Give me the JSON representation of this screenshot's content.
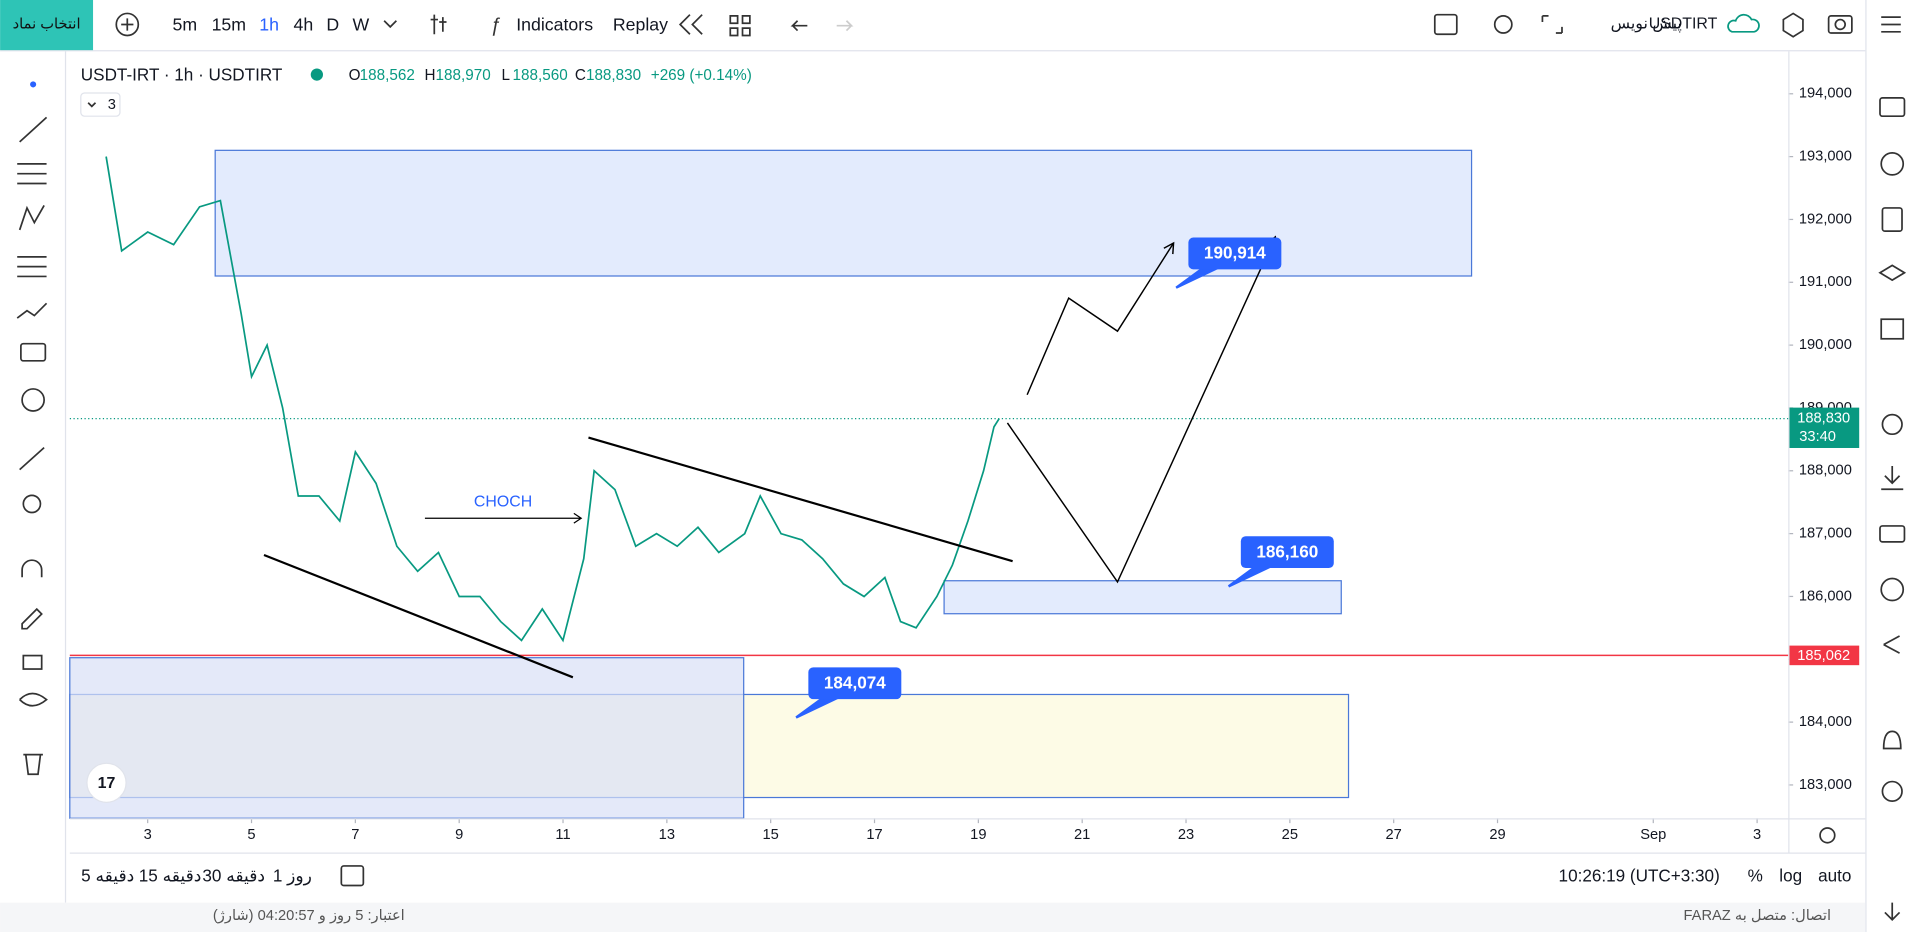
{
  "top_bar": {
    "symbol_search": "انتخاب نماد",
    "intervals": [
      "5m",
      "15m",
      "1h",
      "4h",
      "D",
      "W"
    ],
    "indicators": "Indicators",
    "replay": "Replay",
    "draft": "پیش نویس",
    "symbol": "USDTIRT"
  },
  "legend": {
    "title": "USDT-IRT · 1h · USDTIRT",
    "ohlc": [
      {
        "key": "O",
        "value": "188,562"
      },
      {
        "key": "H",
        "value": "188,970"
      },
      {
        "key": "L",
        "value": "188,560"
      },
      {
        "key": "C",
        "value": "188,830"
      }
    ],
    "change": "+269 (+0.14%)",
    "indicator_count": "3"
  },
  "chart_data": {
    "type": "line",
    "x": [
      2.2,
      2.5,
      3.0,
      3.5,
      4.0,
      4.4,
      4.8,
      5.0,
      5.3,
      5.6,
      5.9,
      6.3,
      6.7,
      7.0,
      7.4,
      7.8,
      8.2,
      8.6,
      9.0,
      9.4,
      9.8,
      10.2,
      10.6,
      11.0,
      11.4,
      11.6,
      12.0,
      12.4,
      12.8,
      13.2,
      13.6,
      14.0,
      14.5,
      14.8,
      15.2,
      15.6,
      16.0,
      16.4,
      16.8,
      17.2,
      17.5,
      17.8,
      18.2,
      18.5,
      18.8,
      19.1,
      19.3,
      19.4
    ],
    "values": [
      193000,
      191500,
      191800,
      191600,
      192200,
      192300,
      190500,
      189500,
      190000,
      189000,
      187600,
      187600,
      187200,
      188300,
      187800,
      186800,
      186400,
      186700,
      186000,
      186000,
      185600,
      185300,
      185800,
      185300,
      186600,
      188000,
      187700,
      186800,
      187000,
      186800,
      187100,
      186700,
      187000,
      187600,
      187000,
      186900,
      186600,
      186200,
      186000,
      186300,
      185600,
      185500,
      186000,
      186500,
      187200,
      188000,
      188700,
      188830
    ],
    "color": "#089981",
    "xlim": [
      1.5,
      34.6
    ],
    "xticks": [
      3,
      5,
      7,
      9,
      11,
      13,
      15,
      17,
      19,
      21,
      23,
      25,
      27,
      29,
      {
        "value": 32,
        "label": "Sep"
      },
      {
        "value": 34,
        "label": "3"
      }
    ],
    "ylim": [
      182470,
      194675
    ],
    "yticks": [
      {
        "value": 183000,
        "label": "183,000"
      },
      {
        "value": 184000,
        "label": "184,000"
      },
      {
        "value": 185000,
        "label": "185,000"
      },
      {
        "value": 186000,
        "label": "186,000"
      },
      {
        "value": 187000,
        "label": "187,000"
      },
      {
        "value": 188000,
        "label": "188,000"
      },
      {
        "value": 189000,
        "label": "189,000"
      },
      {
        "value": 190000,
        "label": "190,000"
      },
      {
        "value": 191000,
        "label": "191,000"
      },
      {
        "value": 192000,
        "label": "192,000"
      },
      {
        "value": 193000,
        "label": "193,000"
      },
      {
        "value": 194000,
        "label": "194,000"
      }
    ],
    "last_price": {
      "value": 188830,
      "label": "188,830",
      "countdown": "33:40",
      "color": "#089981"
    },
    "level": {
      "value": 185062,
      "label": "185,062",
      "color": "#f23645"
    },
    "zones": [
      {
        "x": [
          4.3,
          28.5
        ],
        "y": [
          191100,
          193100
        ],
        "fill": "#e3ebfd",
        "stroke": "#4a78d8"
      },
      {
        "x": [
          18.34,
          25.99
        ],
        "y": [
          185725,
          186250
        ],
        "fill": "#e3ebfd",
        "stroke": "#4a78d8"
      },
      {
        "x": [
          1.5,
          26.13
        ],
        "y": [
          182800,
          184440
        ],
        "fill": "#fdfbe6",
        "stroke": "#4a78d8"
      },
      {
        "x": [
          1.5,
          14.48
        ],
        "y": [
          182470,
          185025
        ],
        "fill": "#d9dff7",
        "stroke": "#4a78d8"
      }
    ],
    "trendlines": [
      {
        "x": [
          5.24,
          11.19
        ],
        "y": [
          186660,
          184713
        ]
      },
      {
        "x": [
          11.49,
          19.66
        ],
        "y": [
          188529,
          186562
        ]
      }
    ],
    "paths": [
      {
        "x": [
          19.94,
          20.74,
          21.68,
          22.76
        ],
        "y": [
          189210,
          190748,
          190222,
          191625
        ]
      },
      {
        "x": [
          19.56,
          21.68,
          24.72
        ],
        "y": [
          188762,
          186231,
          191722
        ]
      }
    ],
    "choch": {
      "text": "CHOCH",
      "x": [
        8.34,
        11.35
      ],
      "y": 187244
    },
    "callouts": [
      {
        "x": 22.81,
        "value": 190914,
        "label": "190,914"
      },
      {
        "x": 23.82,
        "value": 186160,
        "label": "186,160"
      },
      {
        "x": 15.49,
        "value": 184074,
        "label": "184,074"
      }
    ]
  },
  "bottom_bar": {
    "ranges": [
      "5 دقیقه",
      "15 دقیقه",
      "30 دقیقه",
      "1 روز"
    ],
    "clock": "10:26:19 (UTC+3:30)",
    "percent": "%",
    "log": "log",
    "auto": "auto"
  },
  "status_bar": {
    "credit": "اعتبار: 5 روز و 04:20:57 (شارژ)",
    "connection": "اتصال: متصل به FARAZ"
  }
}
